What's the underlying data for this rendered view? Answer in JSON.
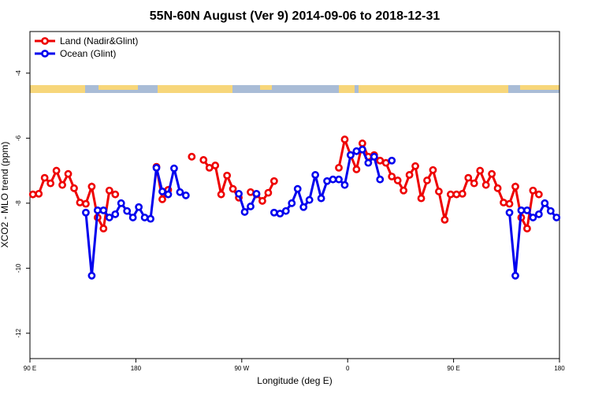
{
  "chart_data": {
    "type": "line",
    "title": "55N-60N August (Ver 9)   2014-09-06 to 2018-12-31",
    "xlabel": "Longitude (deg E)",
    "ylabel": "XCO2 - MLO trend (ppm)",
    "x": [
      92.5,
      97.5,
      102.5,
      107.5,
      112.5,
      117.5,
      122.5,
      127.5,
      132.5,
      137.5,
      142.5,
      147.5,
      152.5,
      157.5,
      162.5,
      167.5,
      172.5,
      177.5,
      182.5,
      187.5,
      192.5,
      197.5,
      202.5,
      207.5,
      212.5,
      217.5,
      222.5,
      227.5,
      232.5,
      237.5,
      242.5,
      247.5,
      252.5,
      257.5,
      262.5,
      267.5,
      272.5,
      277.5,
      282.5,
      287.5,
      292.5,
      297.5,
      302.5,
      307.5,
      312.5,
      317.5,
      322.5,
      327.5,
      332.5,
      337.5,
      342.5,
      347.5,
      352.5,
      357.5,
      362.5,
      367.5,
      372.5,
      377.5,
      382.5,
      387.5,
      392.5,
      397.5,
      402.5,
      407.5,
      412.5,
      417.5,
      422.5,
      427.5,
      432.5,
      437.5,
      442.5,
      447.5,
      452.5,
      457.5,
      462.5,
      467.5,
      472.5,
      477.5,
      482.5,
      487.5,
      492.5,
      497.5,
      502.5,
      507.5,
      512.5,
      517.5,
      522.5,
      527.5,
      532.5,
      537.5
    ],
    "series": [
      {
        "name": "Land (Nadir&Glint)",
        "color": "#ee0000",
        "values": [
          -7.73,
          -7.71,
          -7.22,
          -7.39,
          -7.0,
          -7.44,
          -7.1,
          -7.54,
          -7.98,
          -8.02,
          -7.49,
          -8.44,
          -8.78,
          -7.61,
          -7.73,
          null,
          null,
          null,
          null,
          null,
          null,
          -6.88,
          -7.88,
          -7.59,
          null,
          null,
          null,
          -6.57,
          null,
          -6.67,
          -6.91,
          -6.84,
          -7.73,
          -7.15,
          -7.56,
          -7.83,
          null,
          -7.66,
          -7.73,
          -7.93,
          -7.68,
          -7.32,
          null,
          null,
          null,
          null,
          null,
          null,
          null,
          null,
          null,
          null,
          -6.91,
          -6.04,
          -6.52,
          -6.96,
          -6.16,
          -6.57,
          -6.52,
          -6.69,
          -6.76,
          -7.18,
          -7.3,
          -7.61,
          -7.13,
          -6.86,
          -7.85,
          -7.3,
          -6.98,
          -7.64,
          -8.51,
          -7.73,
          -7.73,
          -7.71,
          -7.22,
          -7.39,
          -7.0,
          -7.44,
          -7.1,
          -7.54,
          -7.98,
          -8.02,
          -7.49,
          -8.44,
          -8.78,
          -7.61,
          -7.73,
          null,
          null,
          null
        ]
      },
      {
        "name": "Ocean (Glint)",
        "color": "#0000ee",
        "values": [
          null,
          null,
          null,
          null,
          null,
          null,
          null,
          null,
          null,
          -8.29,
          -10.23,
          -8.22,
          -8.22,
          -8.44,
          -8.34,
          -8.0,
          -8.24,
          -8.44,
          -8.12,
          -8.44,
          -8.48,
          -6.91,
          -7.64,
          -7.73,
          -6.93,
          -7.66,
          -7.76,
          null,
          null,
          null,
          null,
          null,
          null,
          null,
          null,
          -7.71,
          -8.27,
          -8.1,
          -7.71,
          null,
          null,
          -8.29,
          -8.32,
          -8.24,
          -8.0,
          -7.56,
          -8.12,
          -7.9,
          -7.13,
          -7.85,
          -7.32,
          -7.27,
          -7.27,
          -7.44,
          -6.52,
          -6.4,
          -6.35,
          -6.76,
          -6.57,
          -7.27,
          null,
          -6.69,
          null,
          null,
          null,
          null,
          null,
          null,
          null,
          null,
          null,
          null,
          null,
          null,
          null,
          null,
          null,
          null,
          null,
          null,
          null,
          -8.29,
          -10.23,
          -8.22,
          -8.22,
          -8.44,
          -8.34,
          -8.0,
          -8.24,
          -8.44
        ]
      }
    ],
    "xlim": [
      90,
      540
    ],
    "xticks": [
      {
        "value": 90,
        "label": "90 E"
      },
      180,
      {
        "value": 270,
        "label": "90 W"
      },
      {
        "value": 360,
        "label": "0"
      },
      {
        "value": 450,
        "label": "90 E"
      },
      {
        "value": 540,
        "label": "180"
      }
    ],
    "ylim": [
      -12.78,
      -2.72
    ],
    "yticks": [
      -4,
      -6,
      -8,
      -10,
      -12
    ],
    "legend": "top-left"
  }
}
